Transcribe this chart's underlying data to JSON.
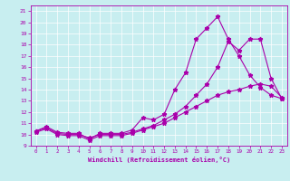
{
  "xlabel": "Windchill (Refroidissement éolien,°C)",
  "bg_color": "#c8eef0",
  "line_color": "#aa00aa",
  "xlim": [
    -0.5,
    23.5
  ],
  "ylim": [
    9,
    21.5
  ],
  "xticks": [
    0,
    1,
    2,
    3,
    4,
    5,
    6,
    7,
    8,
    9,
    10,
    11,
    12,
    13,
    14,
    15,
    16,
    17,
    18,
    19,
    20,
    21,
    22,
    23
  ],
  "yticks": [
    9,
    10,
    11,
    12,
    13,
    14,
    15,
    16,
    17,
    18,
    19,
    20,
    21
  ],
  "line1_x": [
    0,
    1,
    2,
    3,
    4,
    5,
    6,
    7,
    8,
    9,
    10,
    11,
    12,
    13,
    14,
    15,
    16,
    17,
    18,
    19,
    20,
    21,
    22,
    23
  ],
  "line1_y": [
    10.3,
    10.7,
    10.2,
    10.1,
    10.1,
    9.6,
    10.1,
    10.1,
    10.1,
    10.4,
    11.5,
    11.3,
    11.8,
    14.0,
    15.5,
    18.5,
    19.5,
    20.5,
    18.5,
    17.0,
    15.3,
    14.2,
    13.5,
    13.2
  ],
  "line2_x": [
    0,
    1,
    2,
    3,
    4,
    5,
    6,
    7,
    8,
    9,
    10,
    11,
    12,
    13,
    14,
    15,
    16,
    17,
    18,
    19,
    20,
    21,
    22,
    23
  ],
  "line2_y": [
    10.3,
    10.6,
    10.1,
    10.0,
    10.0,
    9.7,
    10.0,
    10.0,
    10.0,
    10.2,
    10.5,
    10.8,
    11.3,
    11.8,
    12.5,
    13.5,
    14.5,
    16.0,
    18.3,
    17.5,
    18.5,
    18.5,
    15.0,
    13.2
  ],
  "line3_x": [
    0,
    1,
    2,
    3,
    4,
    5,
    6,
    7,
    8,
    9,
    10,
    11,
    12,
    13,
    14,
    15,
    16,
    17,
    18,
    19,
    20,
    21,
    22,
    23
  ],
  "line3_y": [
    10.2,
    10.5,
    10.0,
    9.9,
    9.9,
    9.5,
    9.9,
    9.9,
    9.9,
    10.1,
    10.4,
    10.7,
    11.0,
    11.5,
    12.0,
    12.5,
    13.0,
    13.5,
    13.8,
    14.0,
    14.3,
    14.5,
    14.3,
    13.3
  ]
}
